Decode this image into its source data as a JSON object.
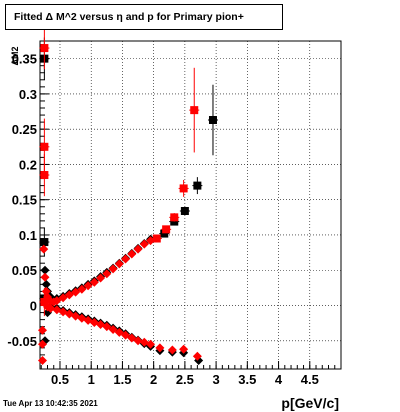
{
  "title": "Fitted Δ M^2 versus η and p for Primary pion+",
  "timestamp": "Tue Apr 13 10:42:35 2021",
  "chart_data": {
    "type": "scatter",
    "title": "Fitted Δ M^2 versus η and p for Primary pion+",
    "xlabel": "p[GeV/c]",
    "ylabel": "ΔM2",
    "xlim": [
      0.18,
      5.0
    ],
    "ylim": [
      -0.09,
      0.375
    ],
    "x_ticks": [
      {
        "value": 0.5,
        "label": "0.5"
      },
      {
        "value": 1.0,
        "label": "1"
      },
      {
        "value": 1.5,
        "label": "1.5"
      },
      {
        "value": 2.0,
        "label": "2"
      },
      {
        "value": 2.5,
        "label": "2.5"
      },
      {
        "value": 3.0,
        "label": "3"
      },
      {
        "value": 3.5,
        "label": "3.5"
      },
      {
        "value": 4.0,
        "label": "4"
      },
      {
        "value": 4.5,
        "label": "4.5"
      }
    ],
    "y_ticks": [
      {
        "value": -0.05,
        "label": "-0.05"
      },
      {
        "value": 0,
        "label": "0"
      },
      {
        "value": 0.05,
        "label": "0.05"
      },
      {
        "value": 0.1,
        "label": "0.1"
      },
      {
        "value": 0.15,
        "label": "0.15"
      },
      {
        "value": 0.2,
        "label": "0.2"
      },
      {
        "value": 0.25,
        "label": "0.25"
      },
      {
        "value": 0.3,
        "label": "0.3"
      },
      {
        "value": 0.35,
        "label": "0.35"
      }
    ],
    "grid": true,
    "series": [
      {
        "color": "#000000",
        "marker": "square",
        "points": [
          {
            "x": 0.25,
            "y": 0.35,
            "err": 0.03
          },
          {
            "x": 0.25,
            "y": 0.09,
            "err": 0.02
          },
          {
            "x": 0.25,
            "y": 0.01,
            "err": 0.005
          },
          {
            "x": 2.17,
            "y": 0.102,
            "err": 0.004
          },
          {
            "x": 2.33,
            "y": 0.119,
            "err": 0.005
          },
          {
            "x": 2.5,
            "y": 0.134,
            "err": 0.006
          },
          {
            "x": 2.7,
            "y": 0.17,
            "err": 0.012
          },
          {
            "x": 2.95,
            "y": 0.263,
            "err": 0.05
          }
        ]
      },
      {
        "color": "#000000",
        "marker": "diamond",
        "points": [
          {
            "x": 0.24,
            "y": 0.088
          },
          {
            "x": 0.26,
            "y": 0.05
          },
          {
            "x": 0.28,
            "y": 0.03
          },
          {
            "x": 0.3,
            "y": 0.02
          },
          {
            "x": 0.35,
            "y": 0.012
          },
          {
            "x": 0.45,
            "y": 0.01
          },
          {
            "x": 0.55,
            "y": 0.013
          },
          {
            "x": 0.65,
            "y": 0.017
          },
          {
            "x": 0.75,
            "y": 0.021
          },
          {
            "x": 0.85,
            "y": 0.025
          },
          {
            "x": 0.95,
            "y": 0.03
          },
          {
            "x": 1.05,
            "y": 0.035
          },
          {
            "x": 1.15,
            "y": 0.041
          },
          {
            "x": 1.25,
            "y": 0.047
          },
          {
            "x": 1.35,
            "y": 0.053
          },
          {
            "x": 1.45,
            "y": 0.06
          },
          {
            "x": 1.55,
            "y": 0.067
          },
          {
            "x": 1.65,
            "y": 0.074
          },
          {
            "x": 1.75,
            "y": 0.081
          },
          {
            "x": 1.85,
            "y": 0.088
          },
          {
            "x": 1.95,
            "y": 0.094
          },
          {
            "x": 0.26,
            "y": -0.05
          },
          {
            "x": 0.3,
            "y": -0.01
          },
          {
            "x": 0.35,
            "y": -0.002
          },
          {
            "x": 0.45,
            "y": -0.004
          },
          {
            "x": 0.55,
            "y": -0.007
          },
          {
            "x": 0.65,
            "y": -0.01
          },
          {
            "x": 0.75,
            "y": -0.013
          },
          {
            "x": 0.85,
            "y": -0.016
          },
          {
            "x": 0.95,
            "y": -0.019
          },
          {
            "x": 1.05,
            "y": -0.022
          },
          {
            "x": 1.15,
            "y": -0.025
          },
          {
            "x": 1.25,
            "y": -0.028
          },
          {
            "x": 1.35,
            "y": -0.032
          },
          {
            "x": 1.45,
            "y": -0.036
          },
          {
            "x": 1.55,
            "y": -0.04
          },
          {
            "x": 1.65,
            "y": -0.045
          },
          {
            "x": 1.75,
            "y": -0.049
          },
          {
            "x": 1.85,
            "y": -0.054
          },
          {
            "x": 1.95,
            "y": -0.058
          },
          {
            "x": 2.1,
            "y": -0.064
          },
          {
            "x": 2.3,
            "y": -0.066
          },
          {
            "x": 2.48,
            "y": -0.067
          },
          {
            "x": 2.72,
            "y": -0.078
          }
        ]
      },
      {
        "color": "#ff0000",
        "marker": "square",
        "points": [
          {
            "x": 0.25,
            "y": 0.365,
            "err": 0.03
          },
          {
            "x": 0.25,
            "y": 0.225,
            "err": 0.04
          },
          {
            "x": 0.25,
            "y": 0.185,
            "err": 0.03
          },
          {
            "x": 0.25,
            "y": 0.005,
            "err": 0.02
          },
          {
            "x": 2.05,
            "y": 0.095,
            "err": 0.004
          },
          {
            "x": 2.2,
            "y": 0.108,
            "err": 0.005
          },
          {
            "x": 2.33,
            "y": 0.125,
            "err": 0.006
          },
          {
            "x": 2.48,
            "y": 0.166,
            "err": 0.012
          },
          {
            "x": 2.65,
            "y": 0.277,
            "err": 0.06
          }
        ]
      },
      {
        "color": "#ff0000",
        "marker": "diamond",
        "points": [
          {
            "x": 0.24,
            "y": 0.08
          },
          {
            "x": 0.26,
            "y": 0.04
          },
          {
            "x": 0.28,
            "y": 0.02
          },
          {
            "x": 0.3,
            "y": 0.012
          },
          {
            "x": 0.35,
            "y": 0.006
          },
          {
            "x": 0.4,
            "y": 0.005
          },
          {
            "x": 0.45,
            "y": 0.007
          },
          {
            "x": 0.55,
            "y": 0.011
          },
          {
            "x": 0.65,
            "y": 0.015
          },
          {
            "x": 0.75,
            "y": 0.019
          },
          {
            "x": 0.85,
            "y": 0.023
          },
          {
            "x": 0.95,
            "y": 0.028
          },
          {
            "x": 1.05,
            "y": 0.033
          },
          {
            "x": 1.15,
            "y": 0.039
          },
          {
            "x": 1.25,
            "y": 0.045
          },
          {
            "x": 1.35,
            "y": 0.052
          },
          {
            "x": 1.45,
            "y": 0.059
          },
          {
            "x": 1.55,
            "y": 0.066
          },
          {
            "x": 1.65,
            "y": 0.073
          },
          {
            "x": 1.75,
            "y": 0.08
          },
          {
            "x": 1.85,
            "y": 0.087
          },
          {
            "x": 1.95,
            "y": 0.092
          },
          {
            "x": 0.22,
            "y": -0.035
          },
          {
            "x": 0.22,
            "y": -0.055
          },
          {
            "x": 0.22,
            "y": -0.078
          },
          {
            "x": 0.3,
            "y": -0.002
          },
          {
            "x": 0.35,
            "y": -0.004
          },
          {
            "x": 0.45,
            "y": -0.006
          },
          {
            "x": 0.55,
            "y": -0.009
          },
          {
            "x": 0.65,
            "y": -0.012
          },
          {
            "x": 0.75,
            "y": -0.015
          },
          {
            "x": 0.85,
            "y": -0.018
          },
          {
            "x": 0.95,
            "y": -0.021
          },
          {
            "x": 1.05,
            "y": -0.024
          },
          {
            "x": 1.15,
            "y": -0.027
          },
          {
            "x": 1.25,
            "y": -0.03
          },
          {
            "x": 1.35,
            "y": -0.034
          },
          {
            "x": 1.45,
            "y": -0.038
          },
          {
            "x": 1.55,
            "y": -0.042
          },
          {
            "x": 1.65,
            "y": -0.046
          },
          {
            "x": 1.75,
            "y": -0.05
          },
          {
            "x": 1.85,
            "y": -0.052
          },
          {
            "x": 1.95,
            "y": -0.055
          },
          {
            "x": 2.1,
            "y": -0.06
          },
          {
            "x": 2.3,
            "y": -0.063
          },
          {
            "x": 2.48,
            "y": -0.062
          },
          {
            "x": 2.7,
            "y": -0.072
          }
        ]
      }
    ]
  }
}
